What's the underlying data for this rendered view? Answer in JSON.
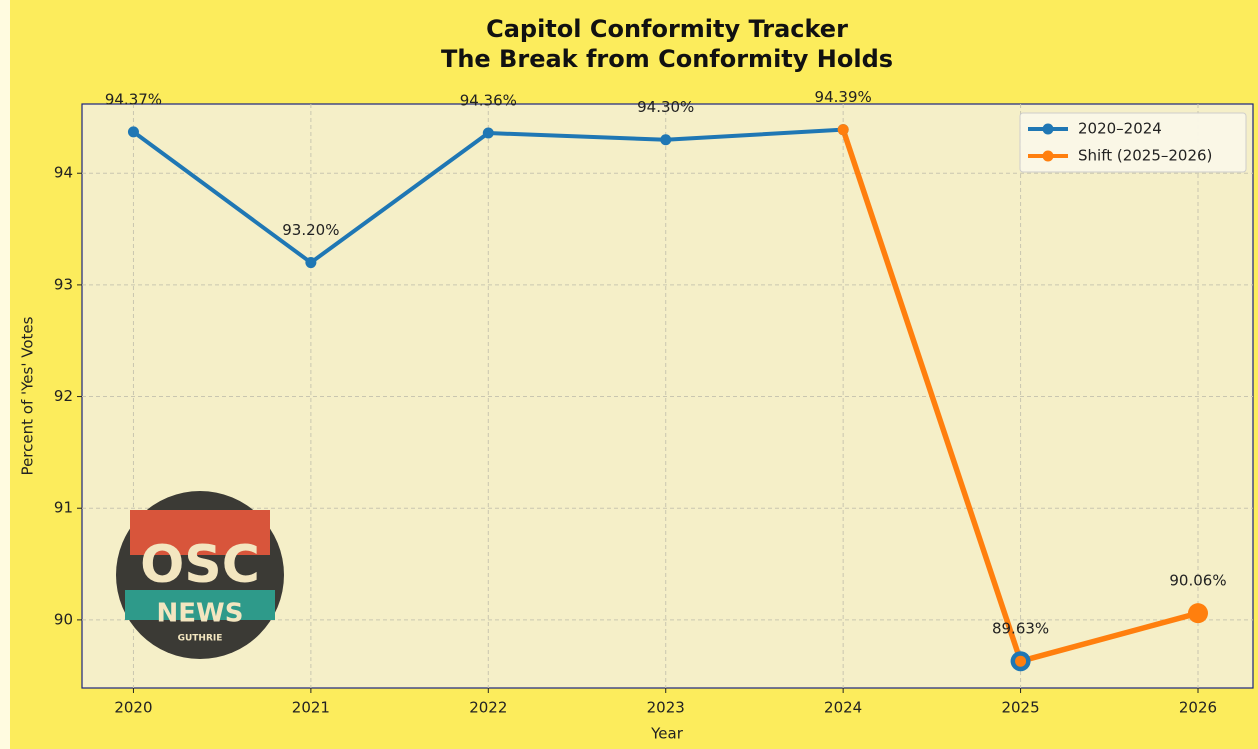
{
  "chart_data": {
    "type": "line",
    "title": "Capitol Conformity Tracker",
    "subtitle": "The Break from Conformity Holds",
    "x_label": "Year",
    "y_label": "Percent of 'Yes' Votes",
    "xlim": [
      2019.71,
      2026.31
    ],
    "xticks": [
      2020,
      2021,
      2022,
      2023,
      2024,
      2025,
      2026
    ],
    "ylim": [
      89.39,
      94.62
    ],
    "yticks": [
      90,
      91,
      92,
      93,
      94
    ],
    "grid": true,
    "legend": "upper right",
    "series": [
      {
        "name": "2020–2024",
        "color": "#1f77b4",
        "x": [
          2020,
          2021,
          2022,
          2023,
          2024,
          2025
        ],
        "values": [
          94.37,
          93.2,
          94.36,
          94.3,
          94.39,
          89.63
        ],
        "value_labels": [
          "94.37%",
          "93.20%",
          "94.36%",
          "94.30%",
          "94.39%",
          "89.63%"
        ]
      },
      {
        "name": "Shift (2025–2026)",
        "color": "#ff7f0e",
        "x": [
          2024,
          2025,
          2026
        ],
        "values": [
          94.39,
          89.63,
          90.06
        ],
        "value_labels": [
          null,
          null,
          "90.06%"
        ]
      }
    ]
  },
  "logo": {
    "text": "OSC",
    "subtitle": "NEWS",
    "caption": "GUTHRIE"
  }
}
